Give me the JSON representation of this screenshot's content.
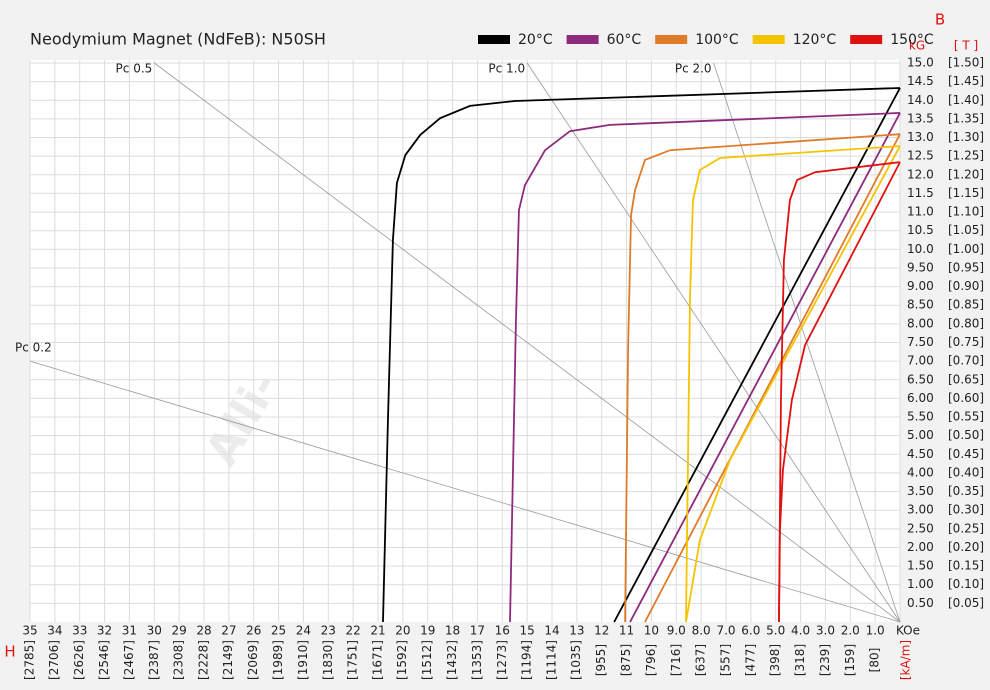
{
  "chart_data": {
    "type": "line",
    "title": "Neodymium Magnet (NdFeB):  N50SH",
    "watermark": "Alli-",
    "x_axis_label": "H",
    "y_axis_label": "B",
    "y_unit": "kG",
    "y2_unit": "[ T ]",
    "xlim": [
      35,
      0
    ],
    "ylim": [
      0,
      15
    ],
    "x2lim": [
      2785,
      0
    ],
    "y2lim": [
      0,
      1.5
    ],
    "grid": true,
    "legend": "top-right",
    "xticks": [
      35,
      34,
      33,
      32,
      31,
      30,
      29,
      28,
      27,
      26,
      25,
      24,
      23,
      22,
      21,
      20,
      19,
      18,
      17,
      16,
      15,
      14,
      13,
      12,
      11,
      10,
      {
        "value": 9,
        "label": "9.0"
      },
      {
        "value": 8,
        "label": "8.0"
      },
      {
        "value": 7,
        "label": "7.0"
      },
      {
        "value": 6,
        "label": "6.0"
      },
      {
        "value": 5,
        "label": "5.0"
      },
      {
        "value": 4,
        "label": "4.0"
      },
      {
        "value": 3,
        "label": "3.0"
      },
      {
        "value": 2,
        "label": "2.0"
      },
      {
        "value": 1,
        "label": "1.0"
      },
      {
        "value": 0,
        "label": "KOe"
      }
    ],
    "x2ticks": [
      {
        "value": 2785,
        "label": "[2785]"
      },
      {
        "value": 2706,
        "label": "[2706]"
      },
      {
        "value": 2626,
        "label": "[2626]"
      },
      {
        "value": 2546,
        "label": "[2546]"
      },
      {
        "value": 2467,
        "label": "[2467]"
      },
      {
        "value": 2387,
        "label": "[2387]"
      },
      {
        "value": 2308,
        "label": "[2308]"
      },
      {
        "value": 2228,
        "label": "[2228]"
      },
      {
        "value": 2149,
        "label": "[2149]"
      },
      {
        "value": 2069,
        "label": "[2069]"
      },
      {
        "value": 1989,
        "label": "[1989]"
      },
      {
        "value": 1910,
        "label": "[1910]"
      },
      {
        "value": 1830,
        "label": "[1830]"
      },
      {
        "value": 1751,
        "label": "[1751]"
      },
      {
        "value": 1671,
        "label": "[1671]"
      },
      {
        "value": 1592,
        "label": "[1592]"
      },
      {
        "value": 1512,
        "label": "[1512]"
      },
      {
        "value": 1432,
        "label": "[1432]"
      },
      {
        "value": 1353,
        "label": "[1353]"
      },
      {
        "value": 1273,
        "label": "[1273]"
      },
      {
        "value": 1194,
        "label": "[1194]"
      },
      {
        "value": 1114,
        "label": "[1114]"
      },
      {
        "value": 1035,
        "label": "[1035]"
      },
      {
        "value": 955,
        "label": "[955]"
      },
      {
        "value": 875,
        "label": "[875]"
      },
      {
        "value": 796,
        "label": "[796]"
      },
      {
        "value": 716,
        "label": "[716]"
      },
      {
        "value": 637,
        "label": "[637]"
      },
      {
        "value": 557,
        "label": "[557]"
      },
      {
        "value": 477,
        "label": "[477]"
      },
      {
        "value": 398,
        "label": "[398]"
      },
      {
        "value": 318,
        "label": "[318]"
      },
      {
        "value": 239,
        "label": "[239]"
      },
      {
        "value": 159,
        "label": "[159]"
      },
      {
        "value": 80,
        "label": "[80]"
      },
      {
        "value": 0,
        "label": "[kA/m]"
      }
    ],
    "yticks": [
      {
        "value": 15,
        "label": "15.0"
      },
      14.5,
      {
        "value": 14,
        "label": "14.0"
      },
      13.5,
      {
        "value": 13,
        "label": "13.0"
      },
      12.5,
      {
        "value": 12,
        "label": "12.0"
      },
      11.5,
      {
        "value": 11,
        "label": "11.0"
      },
      10.5,
      {
        "value": 10,
        "label": "10.0"
      },
      {
        "value": 9.5,
        "label": "9.50"
      },
      {
        "value": 9,
        "label": "9.00"
      },
      {
        "value": 8.5,
        "label": "8.50"
      },
      {
        "value": 8,
        "label": "8.00"
      },
      {
        "value": 7.5,
        "label": "7.50"
      },
      {
        "value": 7,
        "label": "7.00"
      },
      {
        "value": 6.5,
        "label": "6.50"
      },
      {
        "value": 6,
        "label": "6.00"
      },
      {
        "value": 5.5,
        "label": "5.50"
      },
      {
        "value": 5,
        "label": "5.00"
      },
      {
        "value": 4.5,
        "label": "4.50"
      },
      {
        "value": 4,
        "label": "4.00"
      },
      {
        "value": 3.5,
        "label": "3.50"
      },
      {
        "value": 3,
        "label": "3.00"
      },
      {
        "value": 2.5,
        "label": "2.50"
      },
      {
        "value": 2,
        "label": "2.00"
      },
      {
        "value": 1.5,
        "label": "1.50"
      },
      {
        "value": 1,
        "label": "1.00"
      },
      {
        "value": 0.5,
        "label": "0.50"
      }
    ],
    "y2ticks": [
      {
        "value": 1.5,
        "label": "[1.50]"
      },
      {
        "value": 1.45,
        "label": "[1.45]"
      },
      {
        "value": 1.4,
        "label": "[1.40]"
      },
      {
        "value": 1.35,
        "label": "[1.35]"
      },
      {
        "value": 1.3,
        "label": "[1.30]"
      },
      {
        "value": 1.25,
        "label": "[1.25]"
      },
      {
        "value": 1.2,
        "label": "[1.20]"
      },
      {
        "value": 1.15,
        "label": "[1.15]"
      },
      {
        "value": 1.1,
        "label": "[1.10]"
      },
      {
        "value": 1.05,
        "label": "[1.05]"
      },
      {
        "value": 1,
        "label": "[1.00]"
      },
      {
        "value": 0.95,
        "label": "[0.95]"
      },
      {
        "value": 0.9,
        "label": "[0.90]"
      },
      {
        "value": 0.85,
        "label": "[0.85]"
      },
      {
        "value": 0.8,
        "label": "[0.80]"
      },
      {
        "value": 0.75,
        "label": "[0.75]"
      },
      {
        "value": 0.7,
        "label": "[0.70]"
      },
      {
        "value": 0.65,
        "label": "[0.65]"
      },
      {
        "value": 0.6,
        "label": "[0.60]"
      },
      {
        "value": 0.55,
        "label": "[0.55]"
      },
      {
        "value": 0.5,
        "label": "[0.50]"
      },
      {
        "value": 0.45,
        "label": "[0.45]"
      },
      {
        "value": 0.4,
        "label": "[0.40]"
      },
      {
        "value": 0.35,
        "label": "[0.35]"
      },
      {
        "value": 0.3,
        "label": "[0.30]"
      },
      {
        "value": 0.25,
        "label": "[0.25]"
      },
      {
        "value": 0.2,
        "label": "[0.20]"
      },
      {
        "value": 0.15,
        "label": "[0.15]"
      },
      {
        "value": 0.1,
        "label": "[0.10]"
      },
      {
        "value": 0.05,
        "label": "[0.05]"
      }
    ],
    "load_lines": [
      {
        "name": "Pc 0.5",
        "value": 0.5
      },
      {
        "name": "Pc 1.0",
        "value": 1
      },
      {
        "name": "Pc 2.0",
        "value": 2
      },
      {
        "name": "Pc 0.2",
        "value": 0.2
      }
    ],
    "series": [
      {
        "name": "20°C",
        "color": "#000000",
        "x": [
          0,
          15.49,
          17.3,
          18.5,
          19.3,
          19.9,
          20.24,
          20.4,
          20.6,
          20.8
        ],
        "values": [
          14.33,
          13.98,
          13.85,
          13.52,
          13.07,
          12.53,
          11.78,
          10.25,
          5.42,
          0
        ],
        "bh_x": [
          0,
          11.5
        ],
        "bh_values": [
          14.33,
          0
        ]
      },
      {
        "name": "60°C",
        "color": "#8e2a7e",
        "x": [
          0,
          11.67,
          13.28,
          14.28,
          15.09,
          15.33,
          15.45,
          15.69
        ],
        "values": [
          13.66,
          13.34,
          13.17,
          12.66,
          11.72,
          11.05,
          8.1,
          0
        ],
        "bh_x": [
          0,
          10.86
        ],
        "bh_values": [
          13.66,
          0
        ]
      },
      {
        "name": "100°C",
        "color": "#e07b2a",
        "x": [
          0,
          9.25,
          10.26,
          10.66,
          10.82,
          10.94,
          11.06
        ],
        "values": [
          13.09,
          12.66,
          12.4,
          11.59,
          10.92,
          7.3,
          0
        ],
        "bh_x": [
          0,
          10.26
        ],
        "bh_values": [
          13.09,
          0
        ]
      },
      {
        "name": "120°C",
        "color": "#f5c400",
        "x": [
          0,
          7.24,
          8.05,
          8.33,
          8.45,
          8.61
        ],
        "values": [
          12.77,
          12.45,
          12.13,
          11.32,
          8.64,
          0
        ],
        "bh_x": [
          0,
          6.84,
          8.05,
          8.61
        ],
        "bh_values": [
          12.77,
          4.35,
          2.2,
          0
        ]
      },
      {
        "name": "150°C",
        "color": "#e01010",
        "x": [
          0,
          3.42,
          4.14,
          4.43,
          4.67,
          4.79,
          4.87
        ],
        "values": [
          12.34,
          12.07,
          11.86,
          11.32,
          9.71,
          5.96,
          0
        ],
        "bh_x": [
          0,
          3.82,
          4.35,
          4.71,
          4.83,
          4.87
        ],
        "bh_values": [
          12.34,
          7.43,
          5.96,
          4.08,
          2.47,
          0
        ]
      }
    ]
  }
}
